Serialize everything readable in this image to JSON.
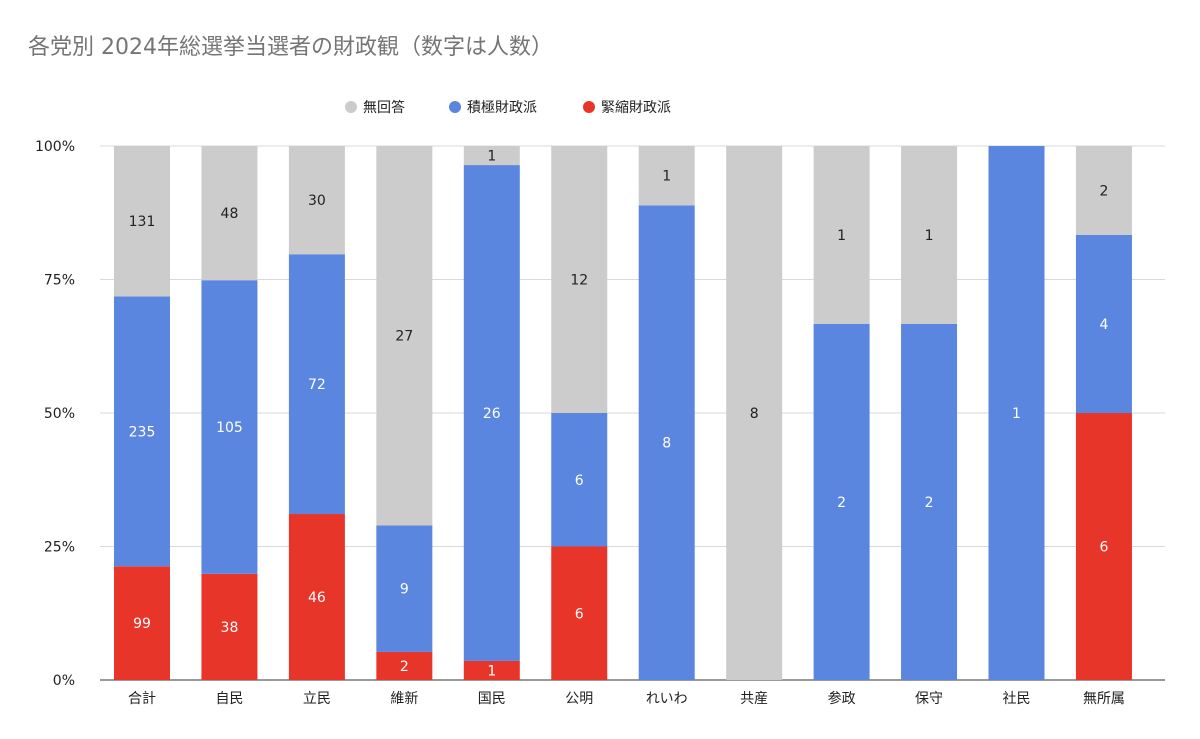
{
  "chart_data": {
    "type": "bar",
    "stacked": "percent",
    "title": "各党別 2024年総選挙当選者の財政観（数字は人数）",
    "xlabel": "",
    "ylabel": "",
    "ylim": [
      0,
      100
    ],
    "yticks": [
      "0%",
      "25%",
      "50%",
      "75%",
      "100%"
    ],
    "grid": true,
    "legend_position": "top",
    "categories": [
      "合計",
      "自民",
      "立民",
      "維新",
      "国民",
      "公明",
      "れいわ",
      "共産",
      "参政",
      "保守",
      "社民",
      "無所属"
    ],
    "series": [
      {
        "name": "緊縮財政派",
        "color": "#e8352a",
        "label_color": "#ffffff",
        "values": [
          99,
          38,
          46,
          2,
          1,
          6,
          0,
          0,
          0,
          0,
          0,
          6
        ]
      },
      {
        "name": "積極財政派",
        "color": "#5a86e0",
        "label_color": "#ffffff",
        "values": [
          235,
          105,
          72,
          9,
          26,
          6,
          8,
          0,
          2,
          2,
          1,
          4
        ]
      },
      {
        "name": "無回答",
        "color": "#cccccc",
        "label_color": "#222222",
        "values": [
          131,
          48,
          30,
          27,
          1,
          12,
          1,
          8,
          1,
          1,
          0,
          2
        ]
      }
    ],
    "legend_order": [
      "無回答",
      "積極財政派",
      "緊縮財政派"
    ]
  }
}
